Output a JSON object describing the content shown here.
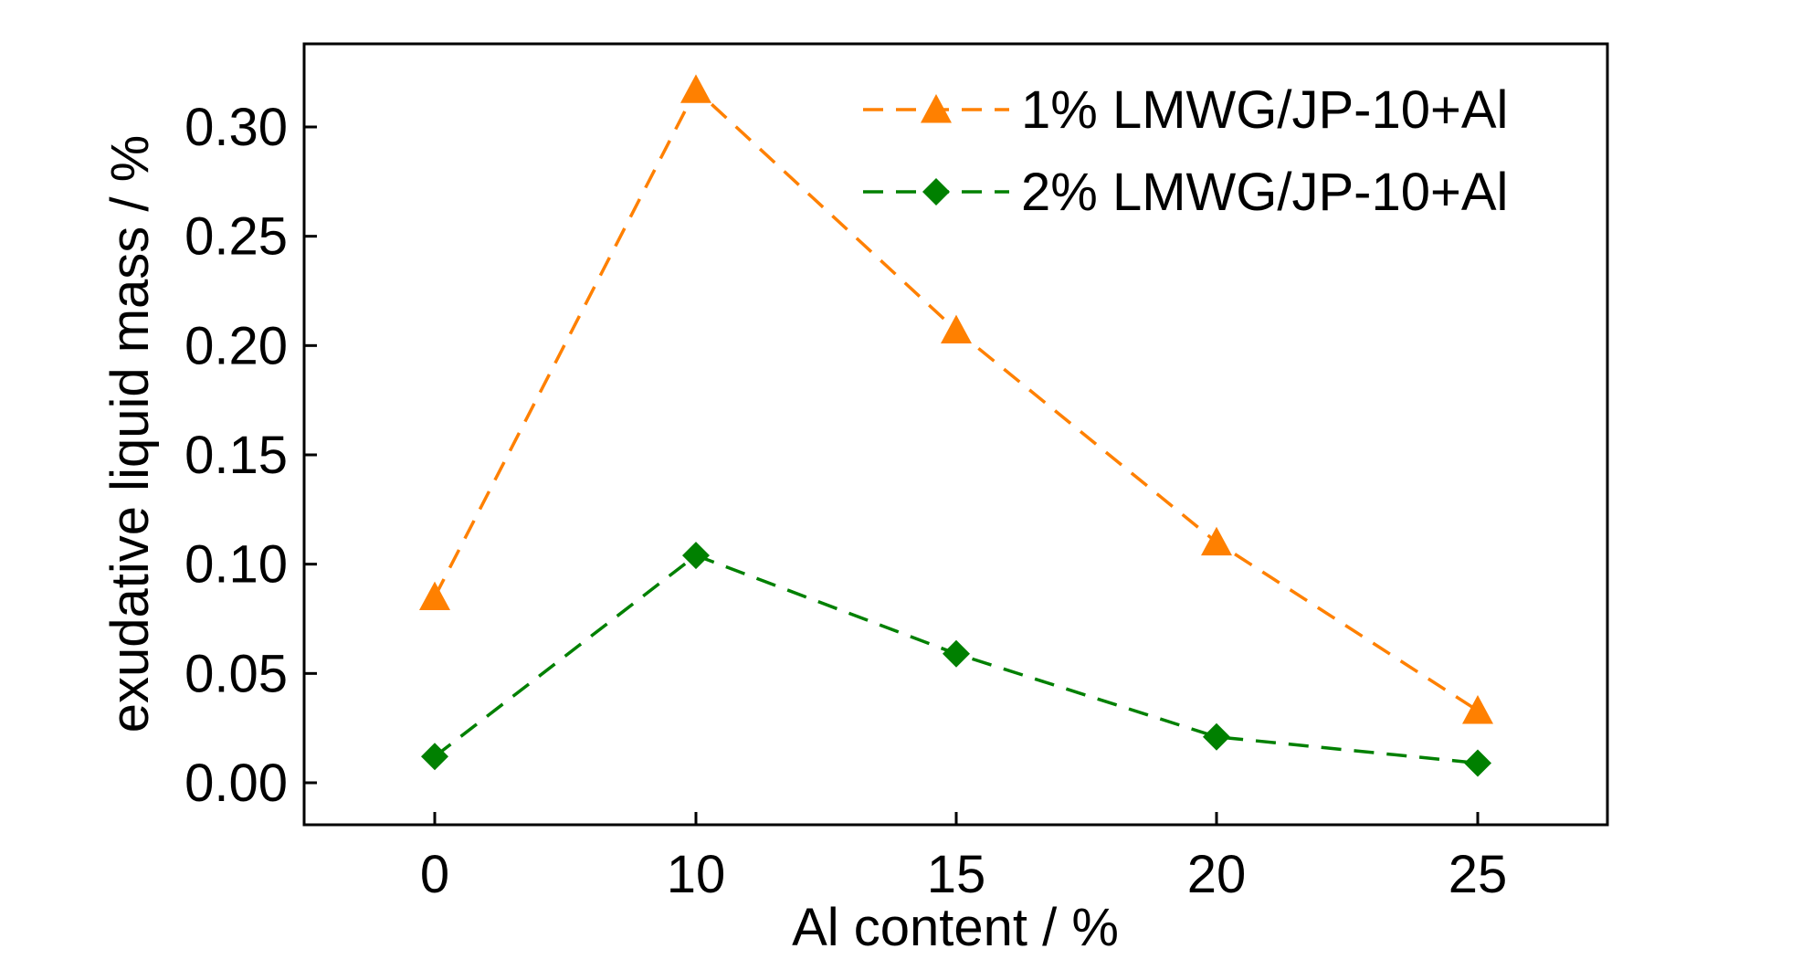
{
  "chart_data": {
    "type": "line",
    "xlabel": "Al content / %",
    "ylabel": "exudative liquid mass / %",
    "categories": [
      "0",
      "10",
      "15",
      "20",
      "25"
    ],
    "ylim": [
      -0.02,
      0.34
    ],
    "yticks": [
      "0.00",
      "0.05",
      "0.10",
      "0.15",
      "0.20",
      "0.25",
      "0.30"
    ],
    "grid": false,
    "legend_position": "top-right",
    "series": [
      {
        "name": "1% LMWG/JP-10+Al",
        "values": [
          0.085,
          0.317,
          0.207,
          0.11,
          0.033
        ],
        "color": "#ff8000",
        "marker": "triangle",
        "line_style": "dashed"
      },
      {
        "name": "2% LMWG/JP-10+Al",
        "values": [
          0.012,
          0.104,
          0.059,
          0.021,
          0.009
        ],
        "color": "#008000",
        "marker": "diamond",
        "line_style": "dashed"
      }
    ]
  }
}
